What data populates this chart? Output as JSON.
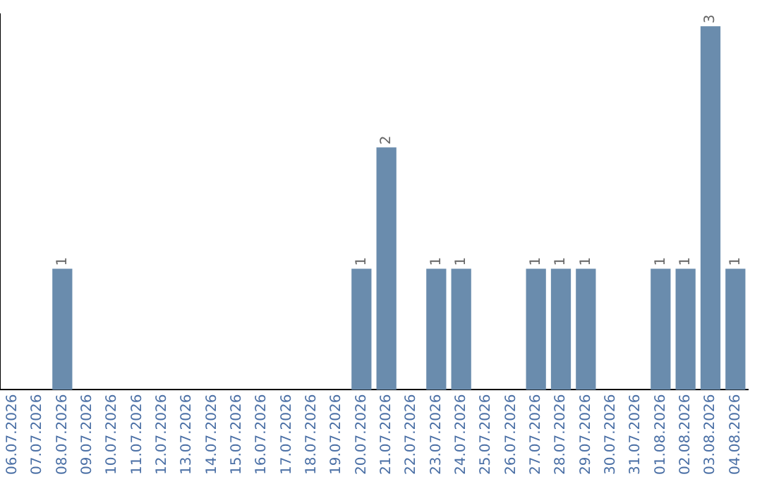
{
  "chart_data": {
    "type": "bar",
    "categories": [
      "06.07.2026",
      "07.07.2026",
      "08.07.2026",
      "09.07.2026",
      "10.07.2026",
      "11.07.2026",
      "12.07.2026",
      "13.07.2026",
      "14.07.2026",
      "15.07.2026",
      "16.07.2026",
      "17.07.2026",
      "18.07.2026",
      "19.07.2026",
      "20.07.2026",
      "21.07.2026",
      "22.07.2026",
      "23.07.2026",
      "24.07.2026",
      "25.07.2026",
      "26.07.2026",
      "27.07.2026",
      "28.07.2026",
      "29.07.2026",
      "30.07.2026",
      "31.07.2026",
      "01.08.2026",
      "02.08.2026",
      "03.08.2026",
      "04.08.2026"
    ],
    "values": [
      0,
      0,
      1,
      0,
      0,
      0,
      0,
      0,
      0,
      0,
      0,
      0,
      0,
      0,
      1,
      2,
      0,
      1,
      1,
      0,
      0,
      1,
      1,
      1,
      0,
      0,
      1,
      1,
      3,
      1
    ],
    "value_labels": [
      null,
      null,
      "1",
      null,
      null,
      null,
      null,
      null,
      null,
      null,
      null,
      null,
      null,
      null,
      "1",
      "2",
      null,
      "1",
      "1",
      null,
      null,
      "1",
      "1",
      "1",
      null,
      null,
      "1",
      "1",
      "3",
      "1"
    ],
    "color": "#6a8cad",
    "ylim": [
      0,
      3.1
    ],
    "tick_labels": "x",
    "grid": false,
    "legend": false
  }
}
